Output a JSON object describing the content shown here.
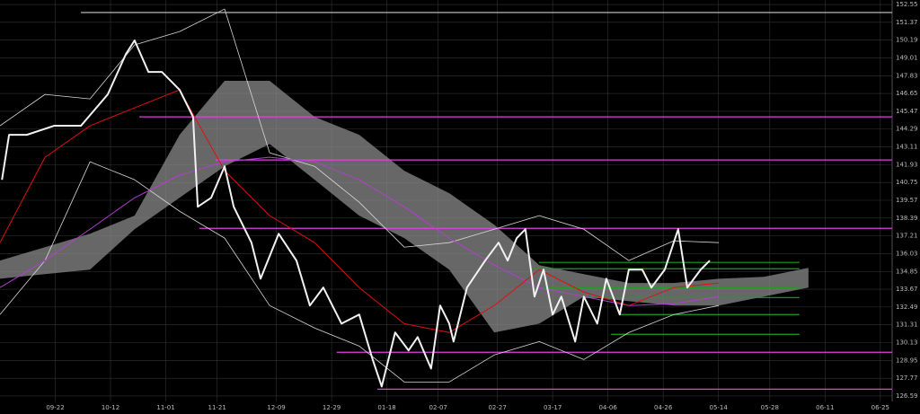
{
  "chart_data": {
    "type": "line",
    "grid": true,
    "xlim": [
      0,
      226
    ],
    "ylim": [
      126.23,
      152.85
    ],
    "yticks": [
      152.55,
      151.37,
      150.19,
      149.01,
      147.83,
      146.65,
      145.47,
      144.29,
      143.11,
      141.93,
      140.75,
      139.57,
      138.39,
      137.21,
      136.03,
      134.85,
      133.67,
      132.49,
      131.31,
      130.13,
      128.95,
      127.77,
      126.59
    ],
    "xticks": [
      {
        "value": 14,
        "label": "09-22"
      },
      {
        "value": 28,
        "label": "10-12"
      },
      {
        "value": 42,
        "label": "11-01"
      },
      {
        "value": 55,
        "label": "11-21"
      },
      {
        "value": 70,
        "label": "12-09"
      },
      {
        "value": 84,
        "label": "12-29"
      },
      {
        "value": 98,
        "label": "01-18"
      },
      {
        "value": 111,
        "label": "02-07"
      },
      {
        "value": 126,
        "label": "02-27"
      },
      {
        "value": 140,
        "label": "03-17"
      },
      {
        "value": 154,
        "label": "04-06"
      },
      {
        "value": 168,
        "label": "04-26"
      },
      {
        "value": 182,
        "label": "05-14"
      },
      {
        "value": 195,
        "label": "05-28"
      },
      {
        "value": 209,
        "label": "06-11"
      },
      {
        "value": 223,
        "label": "06-25"
      }
    ],
    "cloud": {
      "color": "#8a8a8a",
      "x": [
        0,
        11.4,
        22.8,
        34.1,
        45.5,
        56.9,
        68.3,
        79.7,
        91,
        102.4,
        113.8,
        125.2,
        136.6,
        147.9,
        159.3,
        170.7,
        182.1,
        193.5,
        204.8
      ],
      "upper": [
        135.57,
        136.46,
        137.35,
        138.55,
        143.91,
        147.49,
        147.49,
        145.1,
        143.91,
        141.53,
        140.04,
        137.95,
        135.27,
        134.67,
        134.08,
        134.08,
        134.37,
        134.49,
        135.09
      ],
      "lower": [
        134.37,
        134.67,
        134.97,
        137.65,
        139.74,
        141.82,
        143.31,
        140.93,
        138.55,
        137.06,
        134.97,
        130.8,
        131.39,
        133.18,
        132.88,
        132.59,
        132.59,
        133.18,
        133.78
      ]
    },
    "series": [
      {
        "color": "#d8d8d8",
        "width": 0.8,
        "x": [
          0,
          11.4,
          22.8,
          34.1,
          45.5,
          56.9,
          68.3,
          79.7,
          91,
          102.4,
          113.8,
          125.2,
          136.6,
          147.9,
          159.3,
          170.7,
          182.1
        ],
        "values": [
          144.51,
          146.59,
          146.29,
          149.87,
          150.76,
          152.25,
          142.72,
          141.82,
          139.44,
          136.46,
          136.76,
          137.65,
          138.55,
          137.65,
          135.57,
          136.88,
          136.76
        ]
      },
      {
        "color": "#d8d8d8",
        "width": 0.8,
        "x": [
          0,
          11.4,
          22.8,
          34.1,
          45.5,
          56.9,
          68.3,
          79.7,
          91,
          102.4,
          113.8,
          125.2,
          136.6,
          147.9,
          159.3,
          170.7,
          182.1
        ],
        "values": [
          131.99,
          135.57,
          142.12,
          140.93,
          138.84,
          137.06,
          132.59,
          131.1,
          129.9,
          127.52,
          127.52,
          129.31,
          130.2,
          129.01,
          130.8,
          131.99,
          132.59
        ]
      },
      {
        "color": "#b040d0",
        "width": 1,
        "x": [
          0,
          11.4,
          22.8,
          34.1,
          45.5,
          56.9,
          68.3,
          79.7,
          91,
          102.4,
          113.8,
          125.2,
          136.6,
          147.9,
          159.3,
          170.7,
          182.1
        ],
        "values": [
          133.78,
          135.57,
          137.65,
          139.74,
          141.23,
          142.12,
          142.42,
          142.12,
          140.93,
          139.14,
          137.06,
          135.27,
          133.78,
          133.18,
          132.59,
          132.71,
          133.18
        ]
      },
      {
        "color": "#e01010",
        "width": 1,
        "x": [
          0,
          11.4,
          22.8,
          34.1,
          45.5,
          56.9,
          68.3,
          79.7,
          91,
          102.4,
          113.8,
          125.2,
          136.6,
          147.9,
          159.3,
          170.7,
          182.1
        ],
        "values": [
          136.76,
          142.42,
          144.51,
          145.7,
          146.89,
          141.53,
          138.55,
          136.76,
          133.78,
          131.39,
          130.8,
          132.59,
          134.97,
          133.48,
          132.59,
          133.78,
          134.08
        ]
      },
      {
        "color": "#f2f2f2",
        "width": 2,
        "x": [
          0.5,
          2.3,
          6.8,
          13.7,
          20.5,
          27.3,
          31.9,
          34.1,
          37.6,
          41,
          45.5,
          48.9,
          50.1,
          53.5,
          56.9,
          59.2,
          63.7,
          66,
          70.6,
          75.1,
          78.5,
          81.9,
          86.5,
          91,
          94.4,
          96.7,
          100.1,
          103.5,
          105.8,
          109.2,
          111.5,
          113.8,
          114.9,
          118.3,
          122.9,
          126.3,
          128.6,
          130.9,
          133.1,
          135.4,
          137.7,
          140,
          142.2,
          145.7,
          147.9,
          151.3,
          153.6,
          157,
          159.3,
          162.7,
          165,
          168.4,
          171.8,
          174.1,
          177.5,
          179.8
        ],
        "values": [
          140.93,
          143.91,
          143.91,
          144.51,
          144.51,
          146.59,
          149.27,
          150.17,
          148.08,
          148.08,
          146.89,
          145.1,
          139.14,
          139.74,
          141.82,
          139.14,
          136.76,
          134.37,
          137.35,
          135.57,
          132.59,
          133.78,
          131.39,
          131.99,
          129.01,
          127.22,
          130.8,
          129.61,
          130.5,
          128.41,
          132.59,
          131.39,
          130.2,
          133.78,
          135.57,
          136.76,
          135.57,
          137.06,
          137.65,
          133.18,
          134.97,
          131.99,
          133.18,
          130.2,
          133.18,
          131.39,
          134.37,
          131.99,
          134.97,
          134.97,
          133.78,
          134.97,
          137.65,
          133.78,
          134.97,
          135.57
        ]
      }
    ],
    "levels": [
      {
        "value": 152.02,
        "from": 20.5,
        "to": 226,
        "color": "#cccccc"
      },
      {
        "value": 145.1,
        "from": 35.3,
        "to": 226,
        "color": "#e040e0"
      },
      {
        "value": 142.24,
        "from": 54.6,
        "to": 226,
        "color": "#e040e0"
      },
      {
        "value": 137.71,
        "from": 50.5,
        "to": 226,
        "color": "#e040e0"
      },
      {
        "value": 129.49,
        "from": 85.3,
        "to": 226,
        "color": "#e040e0"
      },
      {
        "value": 127.04,
        "from": 95.6,
        "to": 226,
        "color": "#e040e0"
      },
      {
        "value": 135.45,
        "from": 136.5,
        "to": 202.5,
        "color": "#1fa01f"
      },
      {
        "value": 135.03,
        "from": 134.3,
        "to": 202.5,
        "color": "#1fa01f"
      },
      {
        "value": 133.78,
        "from": 137.7,
        "to": 202.5,
        "color": "#1fa01f"
      },
      {
        "value": 133.12,
        "from": 147.9,
        "to": 202.5,
        "color": "#1fa01f"
      },
      {
        "value": 131.99,
        "from": 157,
        "to": 202.5,
        "color": "#1fa01f"
      },
      {
        "value": 130.68,
        "from": 154.8,
        "to": 202.5,
        "color": "#1fa01f"
      }
    ]
  }
}
